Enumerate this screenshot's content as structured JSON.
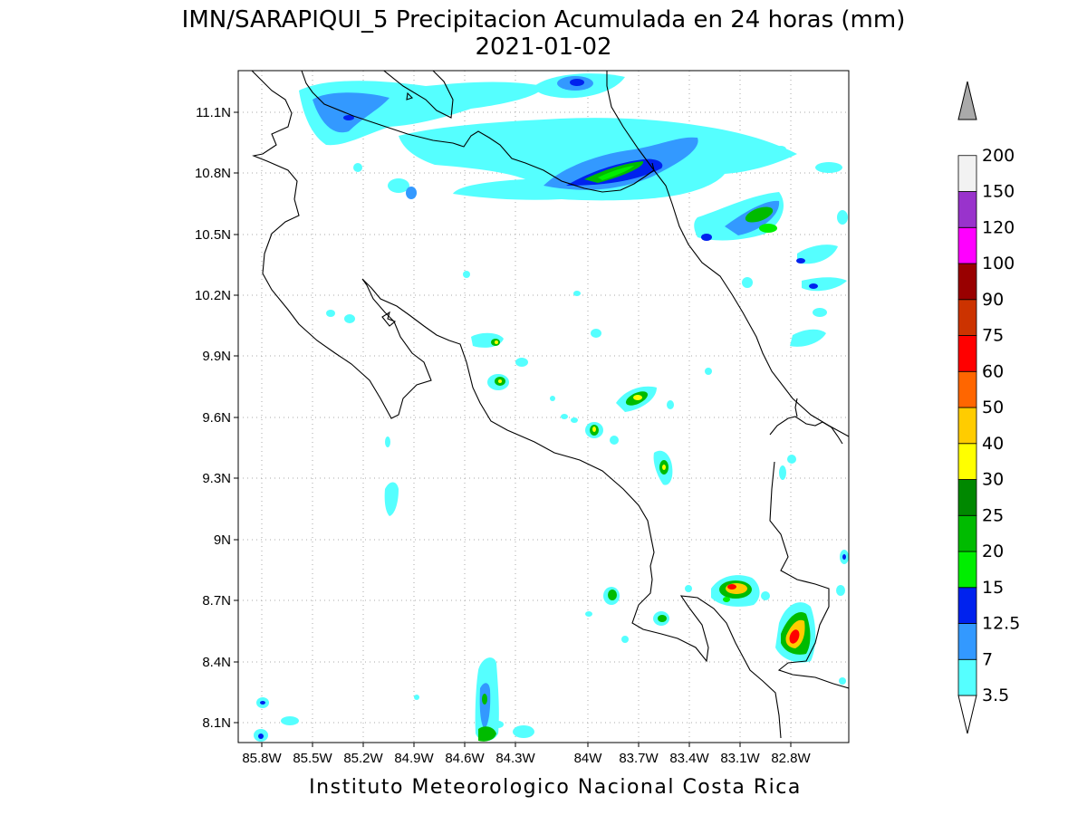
{
  "title_line1": "IMN/SARAPIQUI_5 Precipitacion Acumulada en 24 horas (mm)",
  "title_line2": "2021-01-02",
  "footer": "Instituto Meteorologico Nacional Costa Rica",
  "map": {
    "lon_range": [
      -86.0,
      -82.5
    ],
    "lat_range": [
      8.0,
      11.2
    ],
    "x_ticks": [
      "85.8W",
      "85.5W",
      "85.2W",
      "84.9W",
      "84.6W",
      "84.3W",
      "84W",
      "83.7W",
      "83.4W",
      "83.1W",
      "82.8W"
    ],
    "y_ticks": [
      "11.1N",
      "10.8N",
      "10.5N",
      "10.2N",
      "9.9N",
      "9.6N",
      "9.3N",
      "9N",
      "8.7N",
      "8.4N",
      "8.1N"
    ],
    "grid": "dotted"
  },
  "colorbar": {
    "labels": [
      "3.5",
      "7",
      "12.5",
      "15",
      "20",
      "25",
      "30",
      "40",
      "50",
      "60",
      "75",
      "90",
      "100",
      "120",
      "150",
      "200"
    ],
    "colors": [
      "#55ffff",
      "#3399ff",
      "#0022ee",
      "#00ee00",
      "#00bb00",
      "#008800",
      "#ffff00",
      "#ffcc00",
      "#ff6600",
      "#ff0000",
      "#cc3300",
      "#990000",
      "#ff00ff",
      "#9933cc",
      "#f2f2f2",
      "#aaaaaa"
    ]
  }
}
